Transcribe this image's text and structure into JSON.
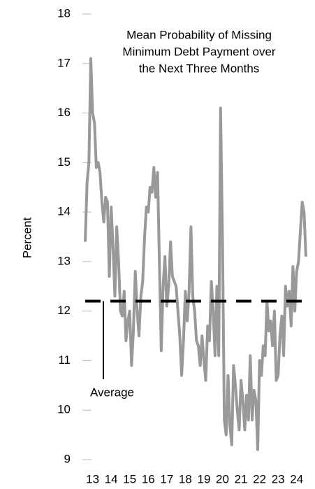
{
  "chart_data": {
    "type": "line",
    "title": [
      "Mean Probability of Missing",
      "Minimum Debt Payment over",
      "the Next Three Months"
    ],
    "y_label": "Percent",
    "categories": [
      null,
      null,
      null,
      null,
      "13",
      null,
      null,
      null,
      null,
      null,
      null,
      null,
      null,
      null,
      "14",
      null,
      null,
      null,
      null,
      null,
      null,
      null,
      null,
      null,
      "15",
      null,
      null,
      null,
      null,
      null,
      null,
      null,
      null,
      null,
      "16",
      null,
      null,
      null,
      null,
      null,
      null,
      null,
      null,
      null,
      "17",
      null,
      null,
      null,
      null,
      null,
      null,
      null,
      null,
      null,
      "18",
      null,
      null,
      null,
      null,
      null,
      null,
      null,
      null,
      null,
      "19",
      null,
      null,
      null,
      null,
      null,
      null,
      null,
      null,
      null,
      "20",
      null,
      null,
      null,
      null,
      null,
      null,
      null,
      null,
      null,
      "21",
      null,
      null,
      null,
      null,
      null,
      null,
      null,
      null,
      null,
      "22",
      null,
      null,
      null,
      null,
      null,
      null,
      null,
      null,
      null,
      "23",
      null,
      null,
      null,
      null,
      null,
      null,
      null,
      null,
      null,
      "24",
      null,
      null,
      null,
      null,
      null
    ],
    "series": [
      {
        "color": "#999999",
        "values": [
          13.4,
          14.6,
          15,
          17.1,
          16.0,
          15.8,
          14.9,
          15,
          14.8,
          14.2,
          13.8,
          14.3,
          14.2,
          12.7,
          14.1,
          13.3,
          12.3,
          13.7,
          13,
          12,
          11.9,
          12.4,
          11.4,
          11.8,
          12.0,
          10.9,
          11.6,
          12.8,
          12.0,
          11.5,
          12.3,
          12.6,
          13.5,
          14.1,
          14.0,
          14.5,
          14.4,
          14.9,
          14.3,
          14.8,
          13,
          11.2,
          12.5,
          13.1,
          12.1,
          12.5,
          13.4,
          12.7,
          12.6,
          12.5,
          12.0,
          11.5,
          10.7,
          11.4,
          12.4,
          11.8,
          12.4,
          13.7,
          12.3,
          12.0,
          11.4,
          11.3,
          10.9,
          11.5,
          11.0,
          10.6,
          11.7,
          11.4,
          12.6,
          12.0,
          11.1,
          12.5,
          11.1,
          16.1,
          13.5,
          9.8,
          9.5,
          10.7,
          9.7,
          9.3,
          10.9,
          10.5,
          10.0,
          9.6,
          10.6,
          10.2,
          9.6,
          10.3,
          9.8,
          11.1,
          9.8,
          10.4,
          10.2,
          9.2,
          11.0,
          10.7,
          11.3,
          11.1,
          12.2,
          11.6,
          11.8,
          11.3,
          12.0,
          10.6,
          10.7,
          11.5,
          11.9,
          11.1,
          12.5,
          12.1,
          12.4,
          11.7,
          12.9,
          12.0,
          12.8,
          13.0,
          13.6,
          14.2,
          14.0,
          13.1
        ]
      }
    ],
    "average": {
      "label": "Average",
      "value": 12.2,
      "color": "#000000"
    },
    "ylim": [
      9,
      18
    ],
    "yticks": [
      9,
      10,
      11,
      12,
      13,
      14,
      15,
      16,
      17,
      18
    ]
  }
}
